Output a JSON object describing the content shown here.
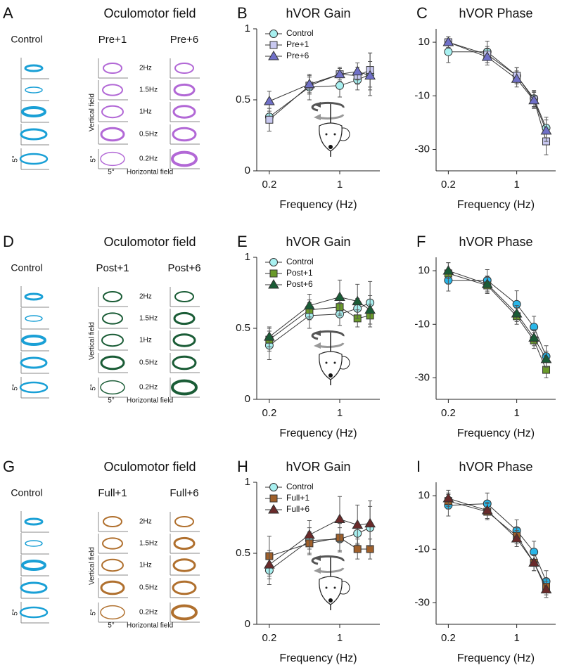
{
  "field_panels": [
    {
      "label": "A",
      "title": "Oculomotor field",
      "control": "Control",
      "conditions": [
        "Pre+1",
        "Pre+6"
      ],
      "color": "#b268d6",
      "frequencies": [
        "2Hz",
        "1.5Hz",
        "1Hz",
        "0.5Hz",
        "0.2Hz"
      ],
      "ylabel": "Vertical field",
      "xlabel": "Horizontal field",
      "scale": "5°"
    },
    {
      "label": "D",
      "title": "Oculomotor field",
      "control": "Control",
      "conditions": [
        "Post+1",
        "Post+6"
      ],
      "color": "#1a5c36",
      "frequencies": [
        "2Hz",
        "1.5Hz",
        "1Hz",
        "0.5Hz",
        "0.2Hz"
      ],
      "ylabel": "Vertical field",
      "xlabel": "Horizontal field",
      "scale": "5°"
    },
    {
      "label": "G",
      "title": "Oculomotor field",
      "control": "Control",
      "conditions": [
        "Full+1",
        "Full+6"
      ],
      "color": "#b0702e",
      "frequencies": [
        "2Hz",
        "1.5Hz",
        "1Hz",
        "0.5Hz",
        "0.2Hz"
      ],
      "ylabel": "Vertical field",
      "xlabel": "Horizontal field",
      "scale": "5°"
    }
  ],
  "chart_data": [
    {
      "type": "line",
      "label": "B",
      "title": "hVOR Gain",
      "xlabel": "Frequency (Hz)",
      "xscale": "log",
      "x": [
        0.2,
        0.5,
        1,
        1.5,
        2
      ],
      "xlim": [
        0.15,
        2.5
      ],
      "xticks": [
        0.2,
        1
      ],
      "ylim": [
        0,
        1
      ],
      "yticks": [
        0,
        0.5,
        1
      ],
      "legend": "upper left",
      "series": [
        {
          "name": "Control",
          "color": "#a8f0f0",
          "marker": "circle",
          "values": [
            0.38,
            0.59,
            0.6,
            0.64,
            0.68
          ],
          "errors": [
            0.1,
            0.09,
            0.08,
            0.07,
            0.15
          ]
        },
        {
          "name": "Pre+1",
          "color": "#c8c8f0",
          "marker": "square",
          "values": [
            0.36,
            0.6,
            0.68,
            0.67,
            0.71
          ],
          "errors": [
            0.08,
            0.06,
            0.05,
            0.06,
            0.12
          ]
        },
        {
          "name": "Pre+6",
          "color": "#7070c8",
          "marker": "triangle",
          "values": [
            0.49,
            0.61,
            0.68,
            0.7,
            0.67
          ],
          "errors": [
            0.07,
            0.06,
            0.04,
            0.06,
            0.1
          ]
        }
      ]
    },
    {
      "type": "line",
      "label": "C",
      "title": "hVOR Phase",
      "xlabel": "Frequency (Hz)",
      "xscale": "log",
      "x": [
        0.2,
        0.5,
        1,
        1.5,
        2
      ],
      "xlim": [
        0.15,
        2.5
      ],
      "xticks": [
        0.2,
        1
      ],
      "ylim": [
        -38,
        15
      ],
      "yticks": [
        -30,
        -10,
        10
      ],
      "series": [
        {
          "color": "#a8f0f0",
          "marker": "circle",
          "values": [
            6.4,
            6.4,
            -2.5,
            -11,
            -22
          ],
          "errors": [
            4,
            4,
            3,
            3,
            4
          ]
        },
        {
          "color": "#c8c8f0",
          "marker": "square",
          "values": [
            10,
            5.4,
            -2.5,
            -11.4,
            -27
          ],
          "errors": [
            2,
            3,
            3,
            3,
            5
          ]
        },
        {
          "color": "#7070c8",
          "marker": "triangle",
          "values": [
            10,
            4.5,
            -3.7,
            -11.7,
            -23
          ],
          "errors": [
            2,
            3,
            3,
            3,
            4
          ]
        }
      ]
    },
    {
      "type": "line",
      "label": "E",
      "title": "hVOR Gain",
      "xlabel": "Frequency (Hz)",
      "xscale": "log",
      "x": [
        0.2,
        0.5,
        1,
        1.5,
        2
      ],
      "xlim": [
        0.15,
        2.5
      ],
      "xticks": [
        0.2,
        1
      ],
      "ylim": [
        0,
        1
      ],
      "yticks": [
        0,
        0.5,
        1
      ],
      "legend": "upper left",
      "series": [
        {
          "name": "Control",
          "color": "#a8f0f0",
          "marker": "circle",
          "values": [
            0.38,
            0.59,
            0.6,
            0.64,
            0.68
          ],
          "errors": [
            0.1,
            0.09,
            0.08,
            0.07,
            0.15
          ]
        },
        {
          "name": "Post+1",
          "color": "#6a9a2a",
          "marker": "square",
          "values": [
            0.42,
            0.63,
            0.65,
            0.57,
            0.59
          ],
          "errors": [
            0.08,
            0.07,
            0.06,
            0.06,
            0.08
          ]
        },
        {
          "name": "Post+6",
          "color": "#1a5c36",
          "marker": "triangle",
          "values": [
            0.44,
            0.66,
            0.72,
            0.69,
            0.63
          ],
          "errors": [
            0.07,
            0.08,
            0.12,
            0.12,
            0.1
          ]
        }
      ]
    },
    {
      "type": "line",
      "label": "F",
      "title": "hVOR Phase",
      "xlabel": "Frequency (Hz)",
      "xscale": "log",
      "x": [
        0.2,
        0.5,
        1,
        1.5,
        2
      ],
      "xlim": [
        0.15,
        2.5
      ],
      "xticks": [
        0.2,
        1
      ],
      "ylim": [
        -38,
        15
      ],
      "yticks": [
        -30,
        -10,
        10
      ],
      "series": [
        {
          "color": "#29b6e8",
          "marker": "circle",
          "values": [
            6.4,
            6.4,
            -2.5,
            -11,
            -22
          ],
          "errors": [
            4,
            4,
            5,
            4,
            4
          ]
        },
        {
          "color": "#6a9a2a",
          "marker": "square",
          "values": [
            9,
            4.5,
            -7,
            -16,
            -27
          ],
          "errors": [
            4,
            3,
            3,
            3,
            3
          ]
        },
        {
          "color": "#1a5c36",
          "marker": "triangle",
          "values": [
            10,
            5,
            -6,
            -15,
            -23
          ],
          "errors": [
            3,
            3,
            3,
            3,
            3
          ]
        }
      ]
    },
    {
      "type": "line",
      "label": "H",
      "title": "hVOR Gain",
      "xlabel": "Frequency (Hz)",
      "xscale": "log",
      "x": [
        0.2,
        0.5,
        1,
        1.5,
        2
      ],
      "xlim": [
        0.15,
        2.5
      ],
      "xticks": [
        0.2,
        1
      ],
      "ylim": [
        0,
        1
      ],
      "yticks": [
        0,
        0.5,
        1
      ],
      "legend": "upper left",
      "series": [
        {
          "name": "Control",
          "color": "#a8f0f0",
          "marker": "circle",
          "values": [
            0.38,
            0.59,
            0.6,
            0.64,
            0.68
          ],
          "errors": [
            0.1,
            0.09,
            0.08,
            0.07,
            0.15
          ]
        },
        {
          "name": "Full+1",
          "color": "#a0602a",
          "marker": "square",
          "values": [
            0.48,
            0.57,
            0.61,
            0.53,
            0.53
          ],
          "errors": [
            0.14,
            0.08,
            0.1,
            0.07,
            0.07
          ]
        },
        {
          "name": "Full+6",
          "color": "#6a2a2a",
          "marker": "triangle",
          "values": [
            0.42,
            0.63,
            0.74,
            0.7,
            0.71
          ],
          "errors": [
            0.1,
            0.1,
            0.16,
            0.14,
            0.16
          ]
        }
      ]
    },
    {
      "type": "line",
      "label": "I",
      "title": "hVOR Phase",
      "xlabel": "Frequency (Hz)",
      "xscale": "log",
      "x": [
        0.2,
        0.5,
        1,
        1.5,
        2
      ],
      "xlim": [
        0.15,
        2.5
      ],
      "xticks": [
        0.2,
        1
      ],
      "ylim": [
        -38,
        15
      ],
      "yticks": [
        -30,
        -10,
        10
      ],
      "series": [
        {
          "color": "#29b6e8",
          "marker": "circle",
          "values": [
            6.4,
            7,
            -3,
            -11,
            -22
          ],
          "errors": [
            4,
            4,
            4,
            4,
            4
          ]
        },
        {
          "color": "#a0602a",
          "marker": "square",
          "values": [
            8,
            4,
            -5,
            -15,
            -24
          ],
          "errors": [
            3,
            3,
            3,
            3,
            3
          ]
        },
        {
          "color": "#6a2a2a",
          "marker": "triangle",
          "values": [
            9,
            4.5,
            -6,
            -15,
            -25
          ],
          "errors": [
            3,
            3,
            3,
            3,
            3
          ]
        }
      ]
    }
  ]
}
